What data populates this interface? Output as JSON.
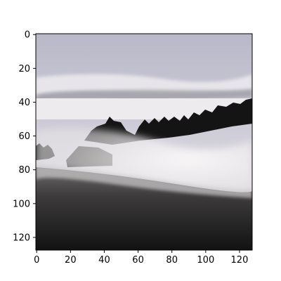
{
  "chart_data": {
    "type": "image",
    "title": "",
    "xlabel": "",
    "ylabel": "",
    "xlim": [
      -0.5,
      127.5
    ],
    "ylim": [
      127.5,
      -0.5
    ],
    "x_ticks": [
      0,
      20,
      40,
      60,
      80,
      100,
      120
    ],
    "y_ticks": [
      0,
      20,
      40,
      60,
      80,
      100,
      120
    ],
    "grid": false,
    "legend": "none",
    "image_content": "grayscale photo: misty hillside, tree line and small house above fog, pale sky",
    "colors": {
      "sky_top": "#b9b8c8",
      "sky_bottom": "#e9e6ea",
      "fog": "#efecee",
      "tree": "#141414",
      "ground_dark": "#151515",
      "ground_mid": "#4d4b4c",
      "axis": "#000000"
    }
  }
}
